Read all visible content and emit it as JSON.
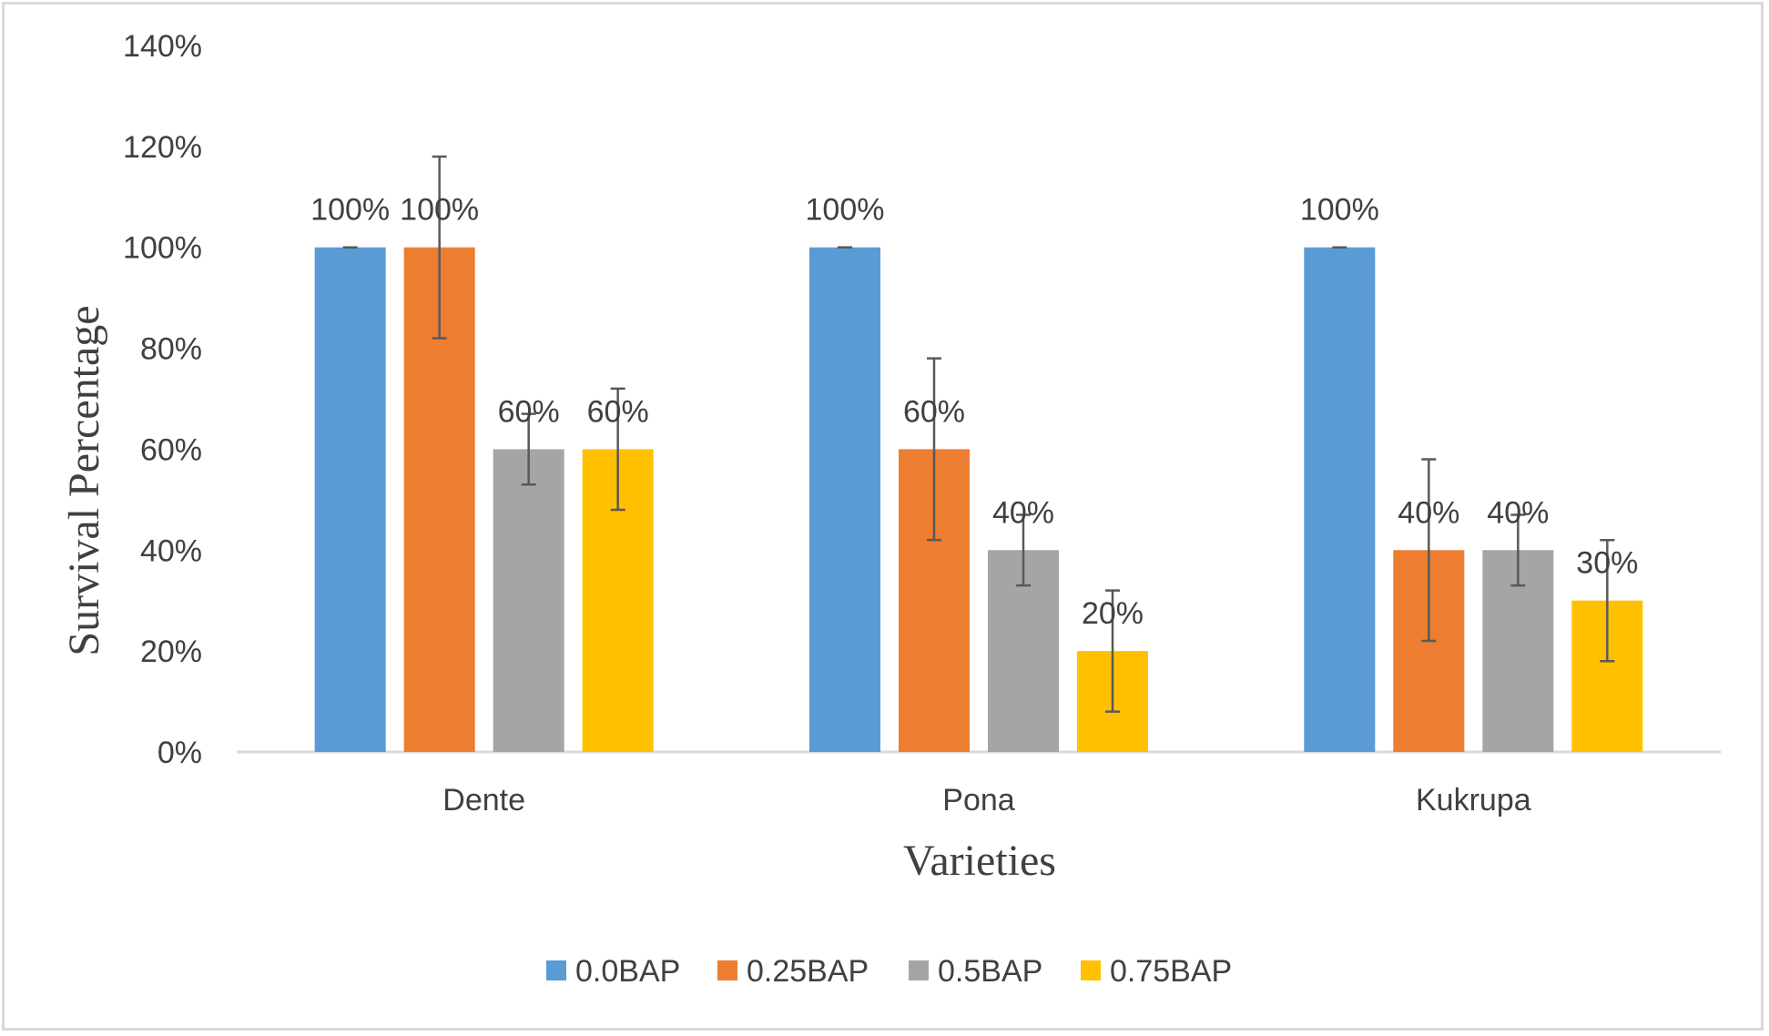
{
  "chart_data": {
    "type": "bar",
    "title": "",
    "xlabel": "Varieties",
    "ylabel": "Survival Percentage",
    "ylim": [
      0,
      140
    ],
    "ytick_step": 20,
    "ytick_labels": [
      "0%",
      "20%",
      "40%",
      "60%",
      "80%",
      "100%",
      "120%",
      "140%"
    ],
    "grid": false,
    "legend_position": "bottom",
    "categories": [
      "Dente",
      "Pona",
      "Kukrupa"
    ],
    "series": [
      {
        "name": "0.0BAP",
        "color": "#5b9bd5",
        "values": [
          100,
          100,
          100
        ],
        "errors": [
          0,
          0,
          0
        ],
        "labels": [
          "100%",
          "100%",
          "100%"
        ]
      },
      {
        "name": "0.25BAP",
        "color": "#ed7d31",
        "values": [
          100,
          60,
          40
        ],
        "errors": [
          18,
          18,
          18
        ],
        "labels": [
          "100%",
          "60%",
          "40%"
        ]
      },
      {
        "name": "0.5BAP",
        "color": "#a5a5a5",
        "values": [
          60,
          40,
          40
        ],
        "errors": [
          7,
          7,
          7
        ],
        "labels": [
          "60%",
          "40%",
          "40%"
        ]
      },
      {
        "name": "0.75BAP",
        "color": "#ffc000",
        "values": [
          60,
          20,
          30
        ],
        "errors": [
          12,
          12,
          12
        ],
        "labels": [
          "60%",
          "20%",
          "30%"
        ]
      }
    ]
  }
}
